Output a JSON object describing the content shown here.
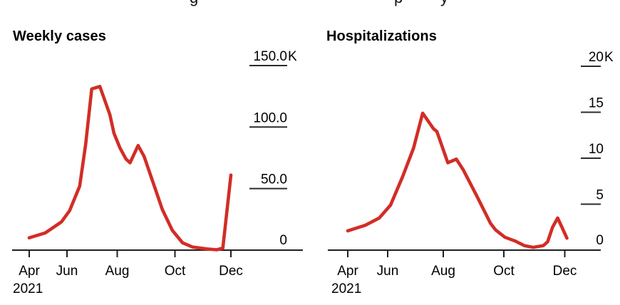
{
  "header": {
    "clipped_title_fragments": [
      {
        "char": "g"
      },
      {
        "char": "p"
      },
      {
        "char": "y"
      }
    ]
  },
  "chart_data": [
    {
      "type": "line",
      "title": "Weekly cases",
      "line_color": "#d22d26",
      "x_tick_labels": [
        "Apr",
        "Jun",
        "Aug",
        "Oct",
        "Dec"
      ],
      "x_year_label": "2021",
      "x_range": [
        "Apr 2021",
        "Dec 2021"
      ],
      "y_unit": "thousands",
      "ylim": [
        0,
        150
      ],
      "grid": false,
      "legend": "none",
      "y_ticks": [
        {
          "label": "150.0K",
          "value": 150
        },
        {
          "label": "100.0",
          "value": 100
        },
        {
          "label": "50.0",
          "value": 50
        },
        {
          "label": "0",
          "value": 0
        }
      ],
      "series": [
        {
          "name": "Weekly cases",
          "points": [
            [
              0.0,
              10
            ],
            [
              0.08,
              14
            ],
            [
              0.16,
              23
            ],
            [
              0.2,
              32
            ],
            [
              0.25,
              52
            ],
            [
              0.28,
              86
            ],
            [
              0.31,
              131
            ],
            [
              0.35,
              133
            ],
            [
              0.4,
              110
            ],
            [
              0.42,
              95
            ],
            [
              0.45,
              83
            ],
            [
              0.48,
              74
            ],
            [
              0.5,
              71
            ],
            [
              0.54,
              85
            ],
            [
              0.57,
              76
            ],
            [
              0.61,
              57
            ],
            [
              0.66,
              33
            ],
            [
              0.71,
              16
            ],
            [
              0.76,
              6
            ],
            [
              0.81,
              2.5
            ],
            [
              0.88,
              1
            ],
            [
              0.93,
              0.3
            ],
            [
              0.96,
              1.7
            ],
            [
              1.0,
              61
            ]
          ]
        }
      ]
    },
    {
      "type": "line",
      "title": "Hospitalizations",
      "line_color": "#d22d26",
      "x_tick_labels": [
        "Apr",
        "Jun",
        "Aug",
        "Oct",
        "Dec"
      ],
      "x_year_label": "2021",
      "x_range": [
        "Apr 2021",
        "Dec 2021"
      ],
      "y_unit": "thousands",
      "ylim": [
        0,
        20
      ],
      "grid": false,
      "legend": "none",
      "y_ticks": [
        {
          "label": "20K",
          "value": 20
        },
        {
          "label": "15",
          "value": 15
        },
        {
          "label": "10",
          "value": 10
        },
        {
          "label": "5",
          "value": 5
        },
        {
          "label": "0",
          "value": 0
        }
      ],
      "series": [
        {
          "name": "Hospitalizations",
          "points": [
            [
              0.0,
              2.1
            ],
            [
              0.08,
              2.7
            ],
            [
              0.145,
              3.5
            ],
            [
              0.197,
              4.9
            ],
            [
              0.253,
              8.0
            ],
            [
              0.303,
              11.1
            ],
            [
              0.345,
              14.9
            ],
            [
              0.395,
              13.2
            ],
            [
              0.411,
              12.9
            ],
            [
              0.461,
              9.5
            ],
            [
              0.5,
              9.9
            ],
            [
              0.533,
              8.7
            ],
            [
              0.592,
              6.0
            ],
            [
              0.658,
              2.9
            ],
            [
              0.681,
              2.2
            ],
            [
              0.724,
              1.4
            ],
            [
              0.77,
              1.0
            ],
            [
              0.813,
              0.5
            ],
            [
              0.855,
              0.3
            ],
            [
              0.901,
              0.5
            ],
            [
              0.921,
              0.9
            ],
            [
              0.944,
              2.5
            ],
            [
              0.967,
              3.5
            ],
            [
              0.987,
              2.5
            ],
            [
              1.01,
              1.3
            ]
          ]
        }
      ]
    }
  ]
}
